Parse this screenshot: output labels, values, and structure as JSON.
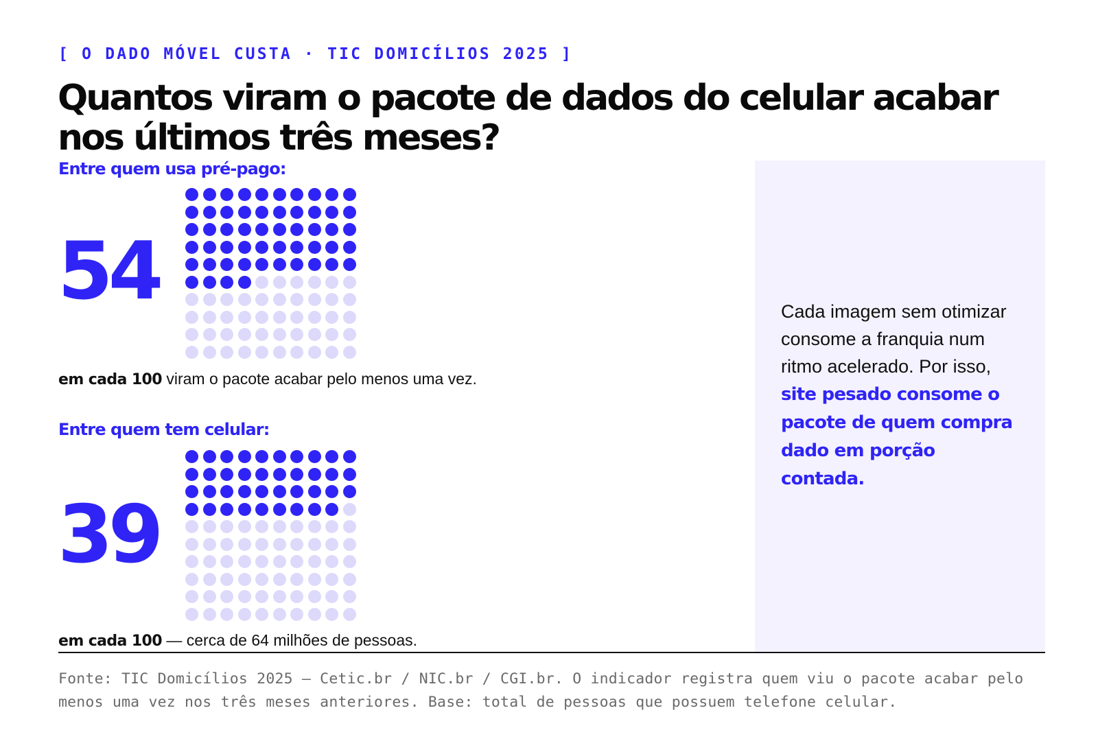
{
  "kicker": "[ O DADO MÓVEL CUSTA · TIC DOMICÍLIOS 2025 ]",
  "title": "Quantos viram o pacote de dados do celular acabar nos últimos três meses?",
  "colors": {
    "accent": "#2f24f5",
    "dot_empty": "#ddd9fb",
    "panel_bg": "#f4f2ff"
  },
  "chart_data": [
    {
      "type": "waffle",
      "label": "Entre quem usa pré-pago:",
      "value": 54,
      "total": 100,
      "value_label": "54",
      "caption_bold": "em cada 100",
      "caption_rest": " viram o pacote acabar pelo menos uma vez."
    },
    {
      "type": "waffle",
      "label": "Entre quem tem celular:",
      "value": 39,
      "total": 100,
      "value_label": "39",
      "caption_bold": "em cada 100",
      "caption_rest": " — cerca de 64 milhões de pessoas."
    }
  ],
  "side_note": {
    "plain": "Cada imagem sem otimizar consome a franquia num ritmo acelerado. Por isso, ",
    "highlight": "site pesado consome o pacote de quem compra dado em porção contada."
  },
  "source": "Fonte: TIC Domicílios 2025 — Cetic.br / NIC.br / CGI.br. O indicador registra quem viu o pacote acabar pelo menos uma vez nos três meses anteriores. Base: total de pessoas que possuem telefone celular."
}
